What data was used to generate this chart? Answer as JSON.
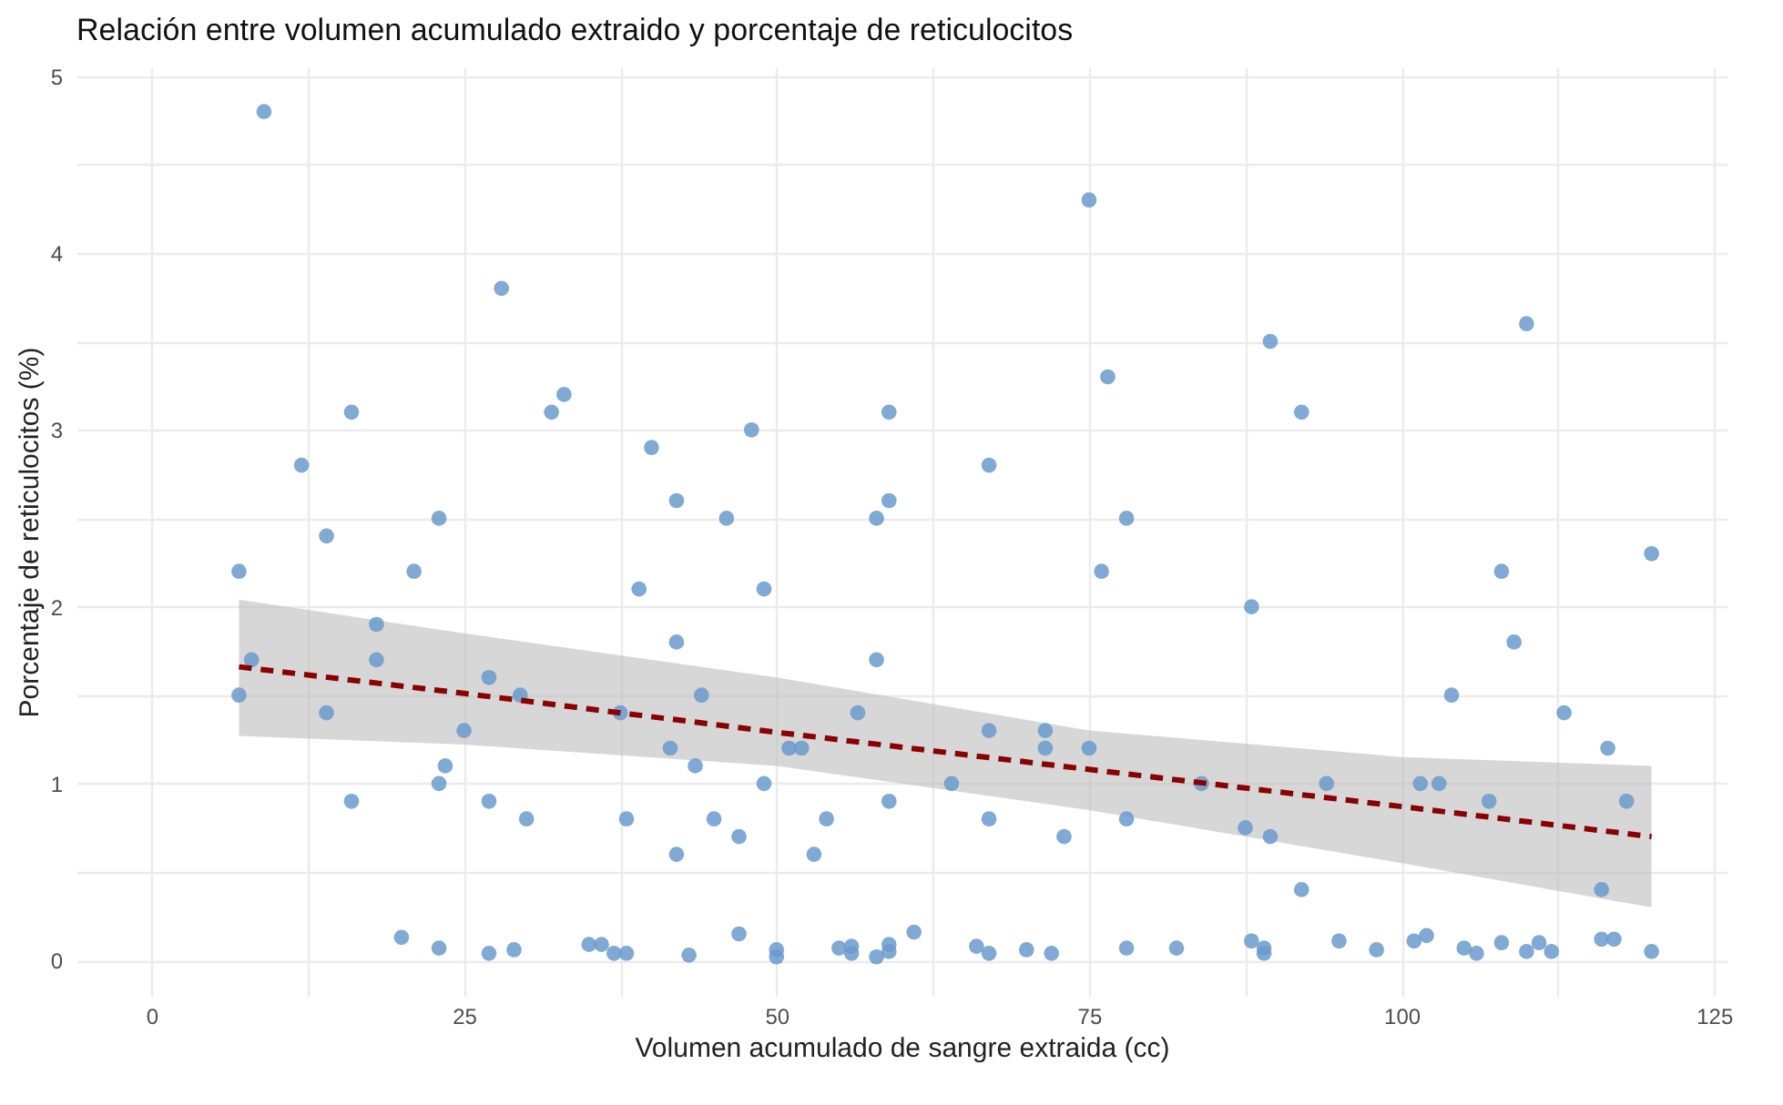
{
  "chart_data": {
    "type": "scatter",
    "title": "Relación entre volumen acumulado extraido y porcentaje de reticulocitos",
    "xlabel": "Volumen acumulado de sangre extraida (cc)",
    "ylabel": "Porcentaje de reticulocitos (%)",
    "xlim": [
      -6,
      126
    ],
    "ylim": [
      -0.2,
      5.05
    ],
    "xticks": [
      0,
      {
        "value": 12.5,
        "label": null
      },
      25,
      {
        "value": 37.5,
        "label": null
      },
      50,
      {
        "value": 62.5,
        "label": null
      },
      75,
      {
        "value": 87.5,
        "label": null
      },
      100,
      {
        "value": 112.5,
        "label": null
      },
      125
    ],
    "yticks": [
      0,
      {
        "value": 0.5,
        "label": null
      },
      1,
      {
        "value": 1.5,
        "label": null
      },
      2,
      {
        "value": 2.5,
        "label": null
      },
      3,
      {
        "value": 3.5,
        "label": null
      },
      4,
      {
        "value": 4.5,
        "label": null
      },
      5
    ],
    "grid": true,
    "series": [
      {
        "marker": "circle",
        "color": "#6a9bcb",
        "x": [
          7,
          7,
          8,
          9,
          12,
          14,
          14,
          16,
          16,
          18,
          18,
          20,
          21,
          23,
          23,
          23,
          23.5,
          25,
          27,
          27,
          27,
          28,
          29,
          29.5,
          30,
          32,
          33,
          35,
          36,
          37.5,
          37,
          38,
          38,
          39,
          40,
          41.5,
          42,
          42,
          42,
          43,
          43.5,
          44,
          45,
          46,
          47,
          47,
          48,
          49,
          49,
          50,
          50,
          51,
          52,
          53,
          54,
          55,
          56,
          56,
          56.5,
          58,
          58,
          58,
          59,
          59,
          59,
          59,
          59,
          61,
          64,
          66,
          67,
          67,
          67,
          67,
          70,
          71.5,
          71.5,
          72,
          73,
          75,
          75,
          76,
          76.5,
          78,
          78,
          78,
          82,
          84,
          87.5,
          88,
          88,
          89,
          89,
          89.5,
          89.5,
          92,
          92,
          94,
          95,
          98,
          101,
          101.5,
          102,
          103,
          104,
          105,
          106,
          107,
          108,
          108,
          109,
          110,
          110,
          111,
          112,
          113,
          116,
          116,
          116.5,
          117,
          118,
          120,
          120
        ],
        "values": [
          2.2,
          1.5,
          1.7,
          4.8,
          2.8,
          2.4,
          1.4,
          3.1,
          0.9,
          1.9,
          1.7,
          0.13,
          2.2,
          2.5,
          1.0,
          0.07,
          1.1,
          1.3,
          1.6,
          0.9,
          0.04,
          3.8,
          0.06,
          1.5,
          0.8,
          3.1,
          3.2,
          0.09,
          0.09,
          1.4,
          0.04,
          0.8,
          0.04,
          2.1,
          2.9,
          1.2,
          2.6,
          1.8,
          0.6,
          0.03,
          1.1,
          1.5,
          0.8,
          2.5,
          0.7,
          0.15,
          3.0,
          2.1,
          1.0,
          0.06,
          0.02,
          1.2,
          1.2,
          0.6,
          0.8,
          0.07,
          0.08,
          0.04,
          1.4,
          2.5,
          1.7,
          0.02,
          3.1,
          2.6,
          0.9,
          0.09,
          0.05,
          0.16,
          1.0,
          0.08,
          2.8,
          1.3,
          0.8,
          0.04,
          0.06,
          1.3,
          1.2,
          0.04,
          0.7,
          4.3,
          1.2,
          2.2,
          3.3,
          2.5,
          0.8,
          0.07,
          0.07,
          1.0,
          0.75,
          2.0,
          0.11,
          0.07,
          0.04,
          0.7,
          3.5,
          3.1,
          0.4,
          1.0,
          0.11,
          0.06,
          0.11,
          1.0,
          0.14,
          1.0,
          1.5,
          0.07,
          0.04,
          0.9,
          2.2,
          0.1,
          1.8,
          3.6,
          0.05,
          0.1,
          0.05,
          1.4,
          0.4,
          0.12,
          1.2,
          0.12,
          0.9,
          2.3,
          0.05
        ]
      },
      {
        "type": "line",
        "color": "#8b0000",
        "line_style": "dashed",
        "x": [
          7,
          25,
          50,
          75,
          100,
          120
        ],
        "values": [
          1.66,
          1.51,
          1.29,
          1.08,
          0.87,
          0.7
        ],
        "lower": [
          1.27,
          1.22,
          1.1,
          0.85,
          0.55,
          0.3
        ],
        "upper": [
          2.04,
          1.85,
          1.6,
          1.3,
          1.15,
          1.1
        ]
      }
    ]
  }
}
